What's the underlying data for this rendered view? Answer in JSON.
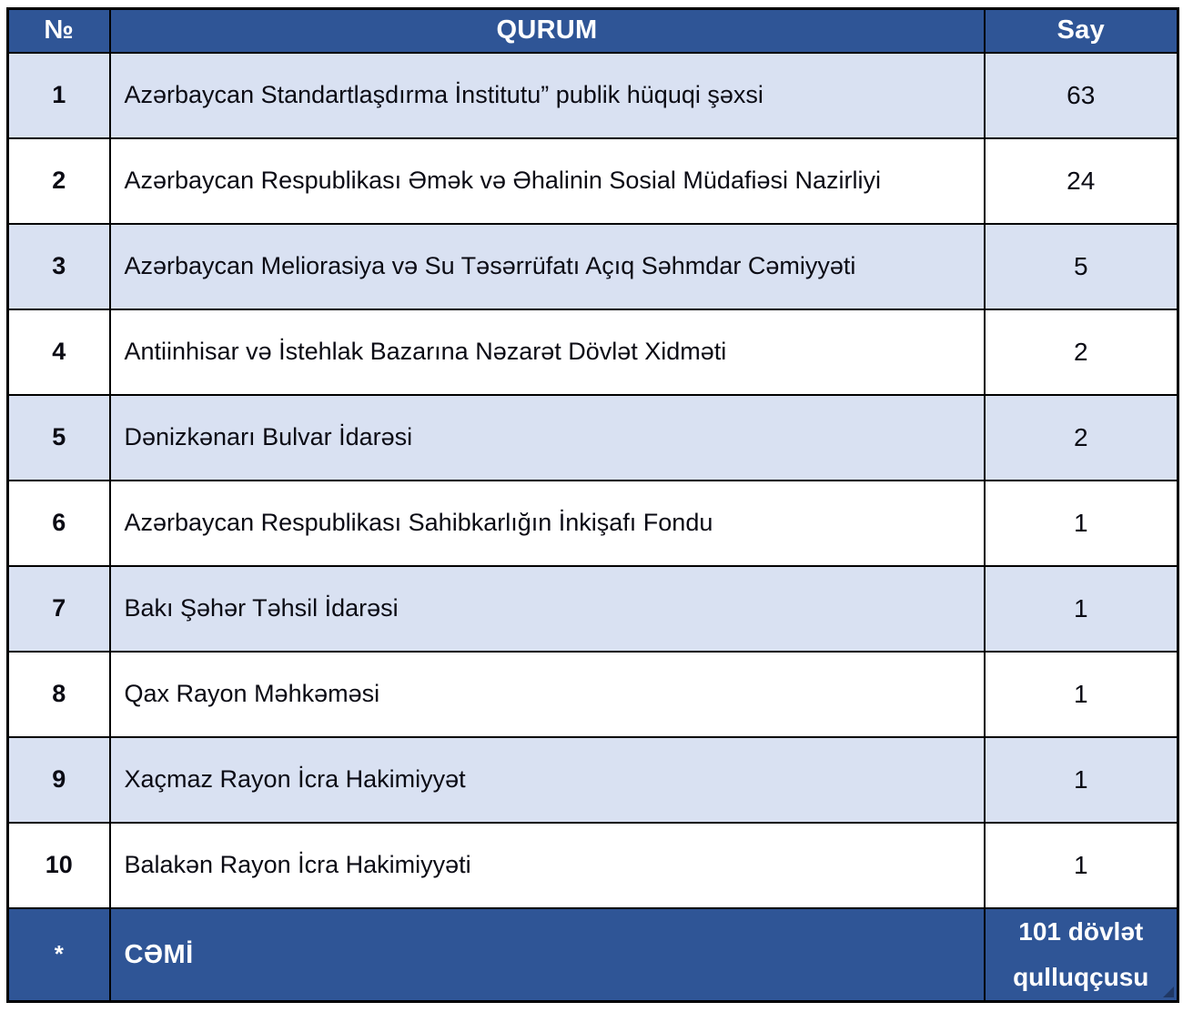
{
  "colors": {
    "header_bg": "#2F5596",
    "footer_bg": "#2F5596",
    "alt_row_bg": "#D9E1F2",
    "row_bg": "#FFFFFF",
    "border": "#000000",
    "header_text": "#FFFFFF",
    "body_text": "#0B0B14"
  },
  "table": {
    "columns": [
      {
        "key": "no",
        "label": "№"
      },
      {
        "key": "qurum",
        "label": "QURUM"
      },
      {
        "key": "say",
        "label": "Say"
      }
    ],
    "rows": [
      {
        "no": "1",
        "qurum": "Azərbaycan Standartlaşdırma İnstitutu” publik hüquqi şəxsi",
        "say": "63"
      },
      {
        "no": "2",
        "qurum": "Azərbaycan Respublikası Əmək və Əhalinin Sosial Müdafiəsi Nazirliyi",
        "say": "24"
      },
      {
        "no": "3",
        "qurum": "Azərbaycan Meliorasiya və Su Təsərrüfatı Açıq Səhmdar Cəmiyyəti",
        "say": "5"
      },
      {
        "no": "4",
        "qurum": "Antiinhisar və İstehlak Bazarına Nəzarət Dövlət Xidməti",
        "say": "2"
      },
      {
        "no": "5",
        "qurum": "Dənizkənarı Bulvar İdarəsi",
        "say": "2"
      },
      {
        "no": "6",
        "qurum": "Azərbaycan Respublikası Sahibkarlığın İnkişafı Fondu",
        "say": "1"
      },
      {
        "no": "7",
        "qurum": "Bakı Şəhər Təhsil İdarəsi",
        "say": "1"
      },
      {
        "no": "8",
        "qurum": "Qax Rayon Məhkəməsi",
        "say": "1"
      },
      {
        "no": "9",
        "qurum": "Xaçmaz Rayon İcra Hakimiyyət",
        "say": "1"
      },
      {
        "no": "10",
        "qurum": "Balakən Rayon İcra Hakimiyyəti",
        "say": "1"
      }
    ],
    "footer": {
      "no": "*",
      "qurum": "CƏMİ",
      "say": "101 dövlət qulluqçusu"
    }
  }
}
